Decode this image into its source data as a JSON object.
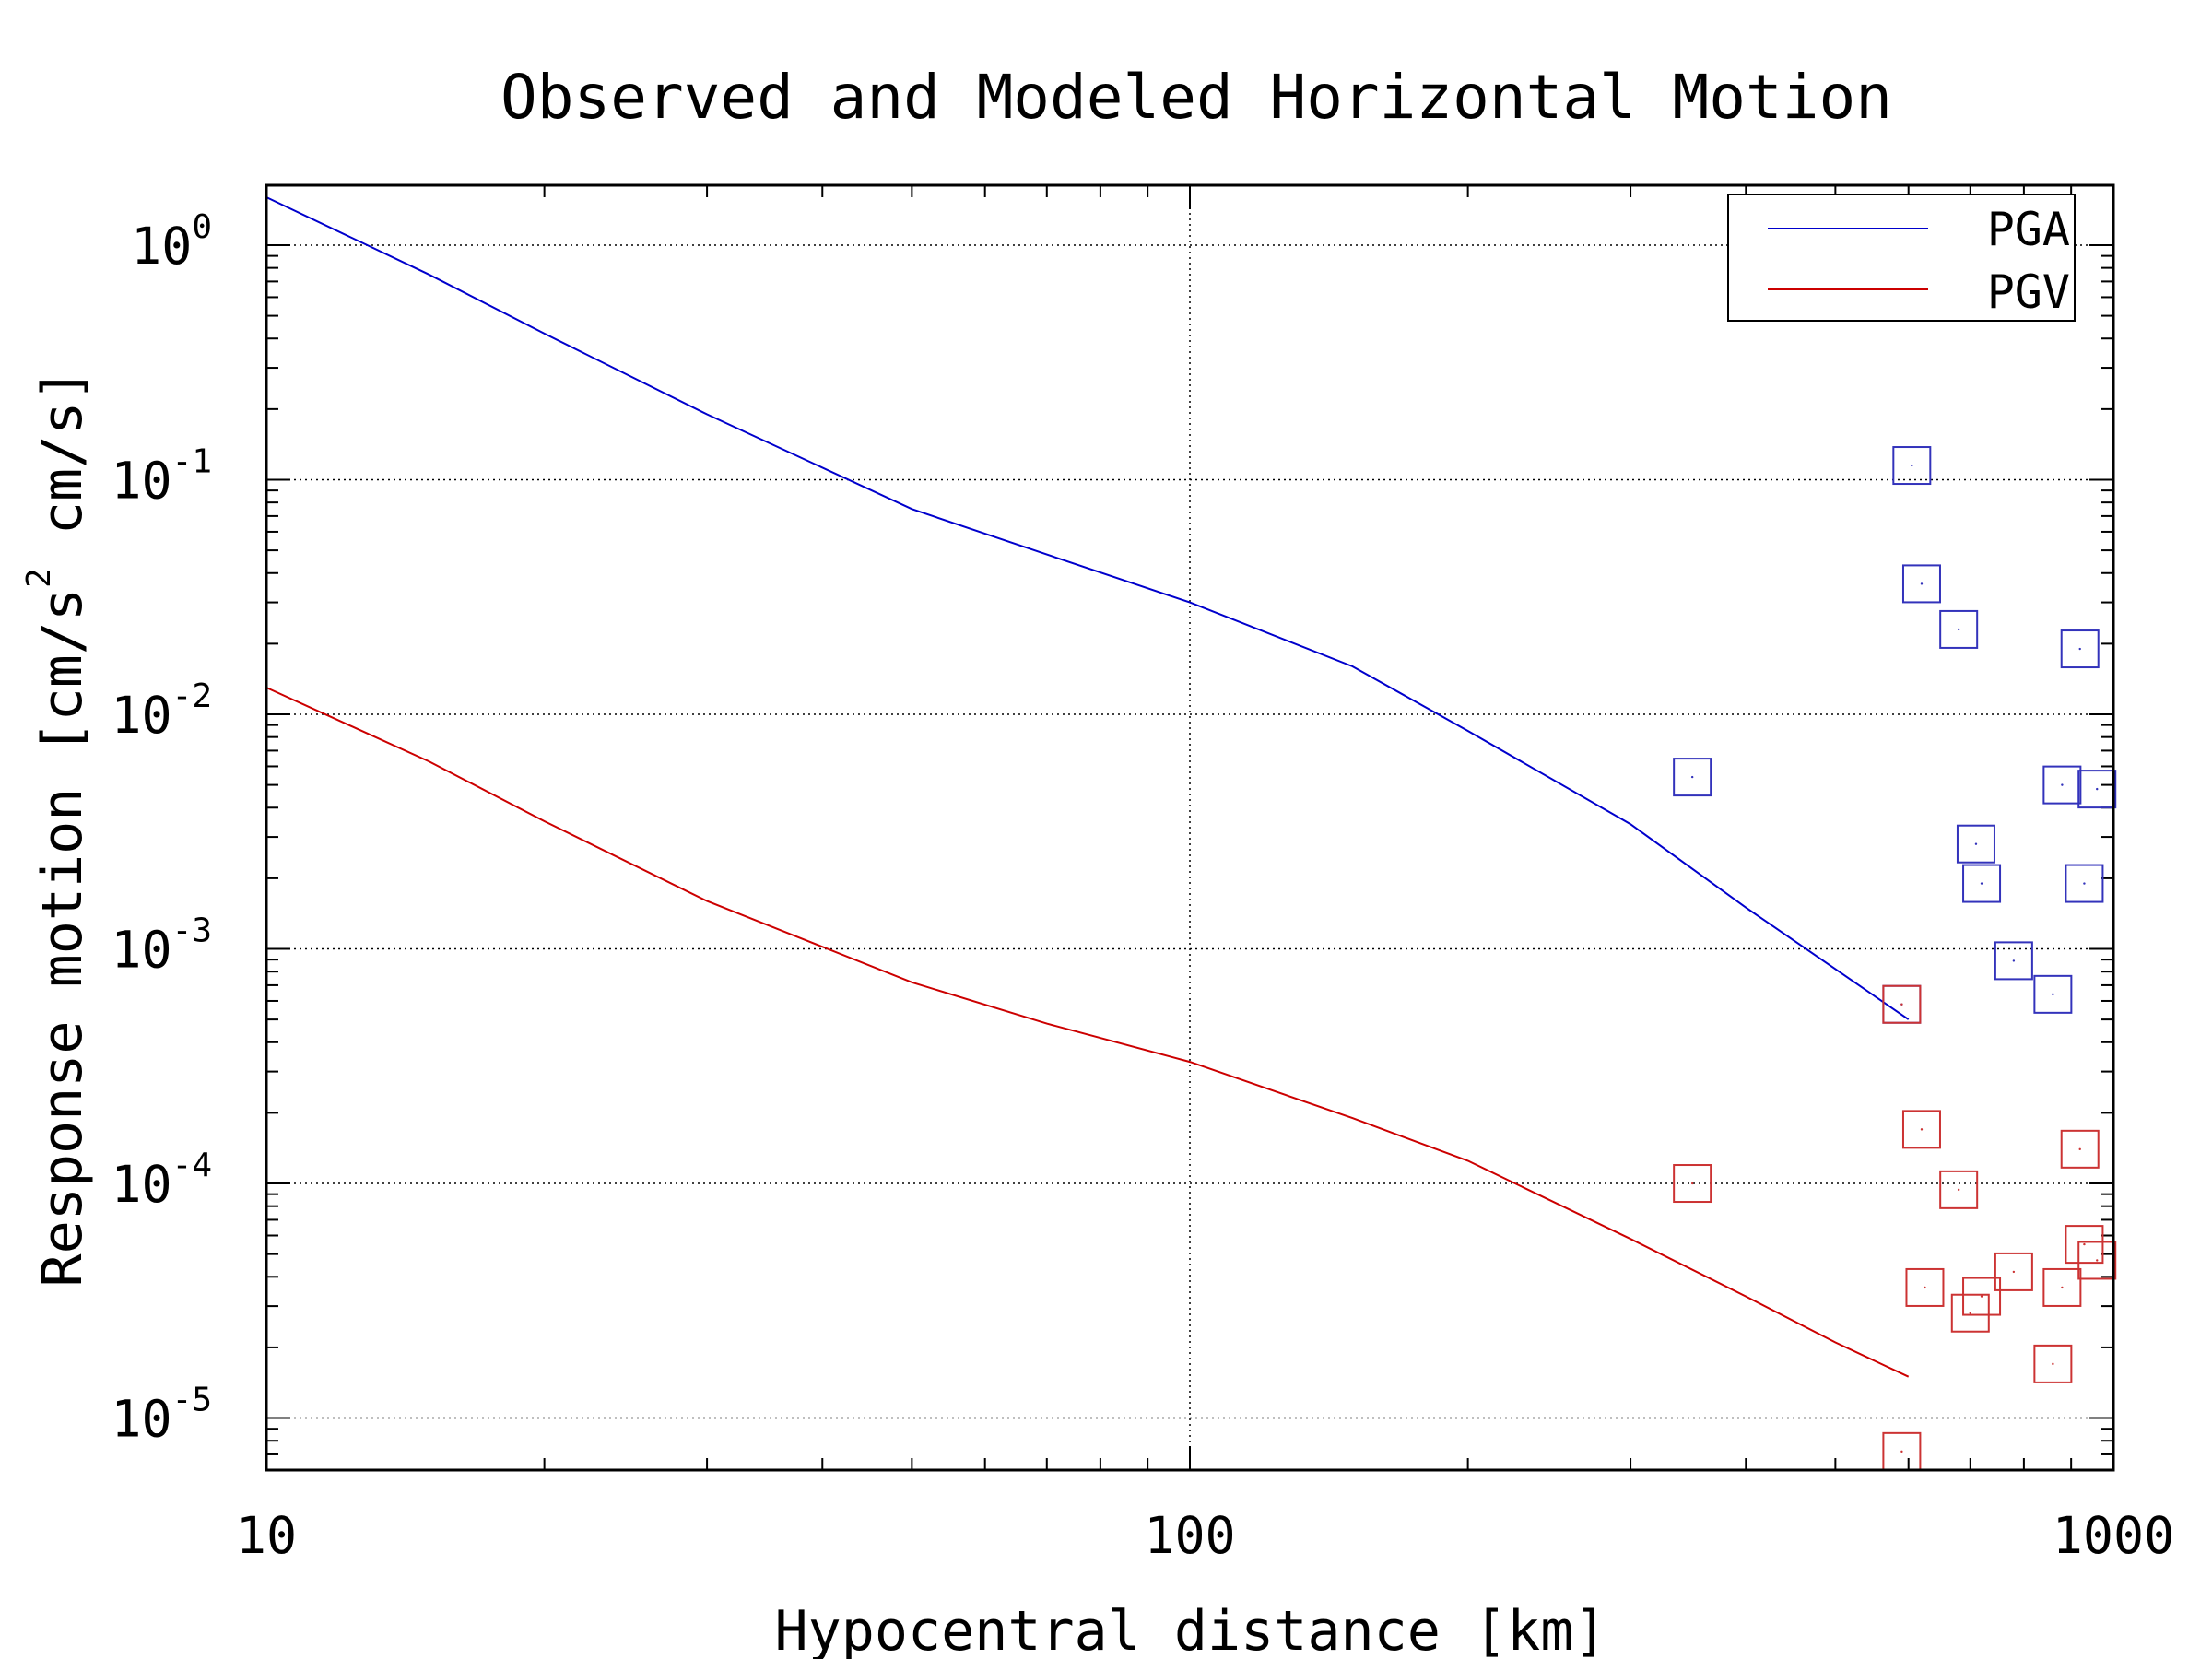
{
  "chart_data": {
    "type": "scatter",
    "title": "Observed and Modeled Horizontal Motion",
    "xlabel": "Hypocentral distance [km]",
    "ylabel": {
      "part1": "Response motion  [cm/s",
      "sup": "2",
      "part2": "  cm/s]"
    },
    "x_scale": "log",
    "y_scale": "log",
    "xlim": [
      10,
      1000
    ],
    "ylim": [
      6e-06,
      1.8
    ],
    "grid": true,
    "legend_position": "top-right",
    "x_ticks": [
      {
        "value": 10,
        "label": "10"
      },
      {
        "value": 100,
        "label": "100"
      },
      {
        "value": 1000,
        "label": "1000"
      }
    ],
    "y_ticks": [
      {
        "value": 1,
        "base": "10",
        "exp": "0"
      },
      {
        "value": 0.1,
        "base": "10",
        "exp": "-1"
      },
      {
        "value": 0.01,
        "base": "10",
        "exp": "-2"
      },
      {
        "value": 0.001,
        "base": "10",
        "exp": "-3"
      },
      {
        "value": 0.0001,
        "base": "10",
        "exp": "-4"
      },
      {
        "value": 1e-05,
        "base": "10",
        "exp": "-5"
      }
    ],
    "series": [
      {
        "name": "PGA",
        "kind": "line",
        "color": "#0000cc",
        "x": [
          10,
          15,
          20,
          30,
          50,
          70,
          100,
          150,
          200,
          300,
          400,
          500,
          600
        ],
        "y": [
          1.6,
          0.75,
          0.42,
          0.19,
          0.075,
          0.048,
          0.03,
          0.016,
          0.0085,
          0.0034,
          0.0015,
          0.00082,
          0.0005
        ]
      },
      {
        "name": "PGV",
        "kind": "line",
        "color": "#cc0000",
        "x": [
          10,
          15,
          20,
          30,
          50,
          70,
          100,
          150,
          200,
          300,
          400,
          500,
          600
        ],
        "y": [
          0.013,
          0.0063,
          0.0035,
          0.0016,
          0.00072,
          0.00048,
          0.00033,
          0.00019,
          0.000125,
          5.8e-05,
          3.3e-05,
          2.1e-05,
          1.5e-05
        ]
      },
      {
        "kind": "markers",
        "marker": "square",
        "color": "#3333bb",
        "x": [
          350,
          590,
          605,
          620,
          680,
          710,
          720,
          780,
          860,
          880,
          920,
          930,
          960
        ],
        "y": [
          0.0054,
          0.00058,
          0.115,
          0.036,
          0.023,
          0.0028,
          0.0019,
          0.00089,
          0.00064,
          0.005,
          0.019,
          0.0019,
          0.0048
        ]
      },
      {
        "kind": "markers",
        "marker": "square",
        "color": "#cc3333",
        "x": [
          350,
          590,
          590,
          620,
          625,
          680,
          700,
          720,
          780,
          860,
          880,
          920,
          930,
          960
        ],
        "y": [
          0.0001,
          7.2e-06,
          0.00058,
          0.00017,
          3.6e-05,
          9.4e-05,
          2.8e-05,
          3.3e-05,
          4.2e-05,
          1.7e-05,
          3.6e-05,
          0.00014,
          5.5e-05,
          4.7e-05
        ]
      }
    ]
  }
}
